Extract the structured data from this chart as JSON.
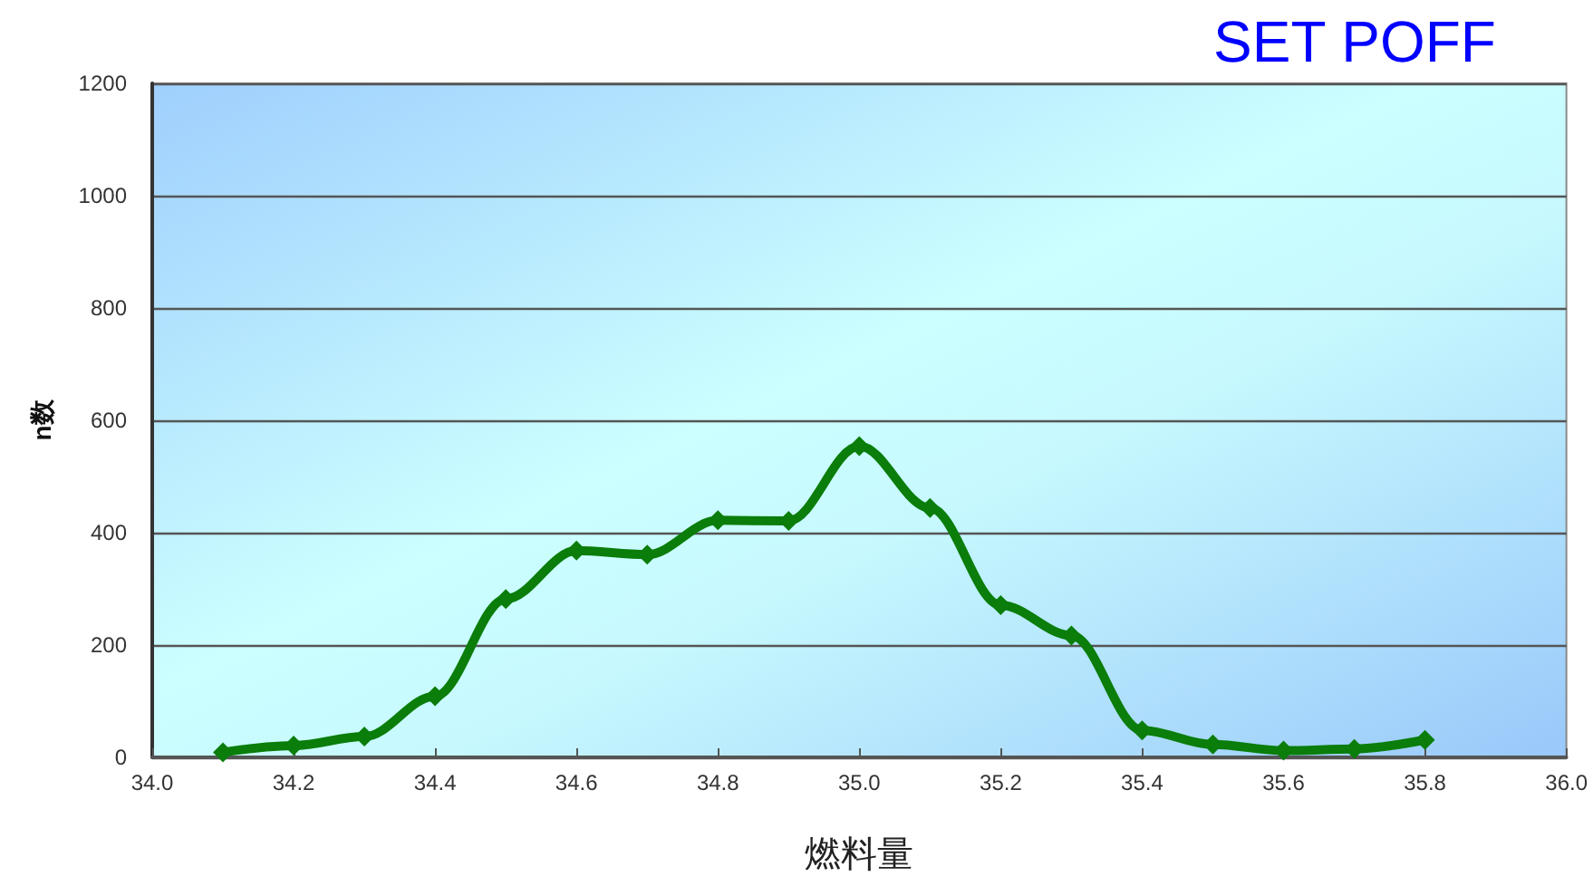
{
  "chart_data": {
    "type": "line",
    "title": "SET POFF",
    "xlabel": "燃料量",
    "ylabel": "n数",
    "x": [
      34.1,
      34.2,
      34.3,
      34.4,
      34.5,
      34.6,
      34.7,
      34.8,
      34.9,
      35.0,
      35.1,
      35.2,
      35.3,
      35.4,
      35.5,
      35.6,
      35.7,
      35.8
    ],
    "series": [
      {
        "color": "#0a7d0a",
        "values": [
          9,
          21,
          37,
          109,
          282,
          368,
          361,
          422,
          421,
          554,
          444,
          271,
          217,
          48,
          23,
          12,
          15,
          31
        ]
      }
    ],
    "xlim": [
      34,
      36
    ],
    "xticks": [
      {
        "value": 34,
        "label": "34.0"
      },
      34.2,
      34.4,
      34.6,
      34.8,
      {
        "value": 35,
        "label": "35.0"
      },
      35.2,
      35.4,
      35.6,
      35.8,
      {
        "value": 36,
        "label": "36.0"
      }
    ],
    "ylim": [
      0,
      1200
    ],
    "yticks": [
      0,
      200,
      400,
      600,
      800,
      1000,
      1200
    ],
    "grid": "y",
    "marker": "diamond",
    "line_style": "solid"
  }
}
